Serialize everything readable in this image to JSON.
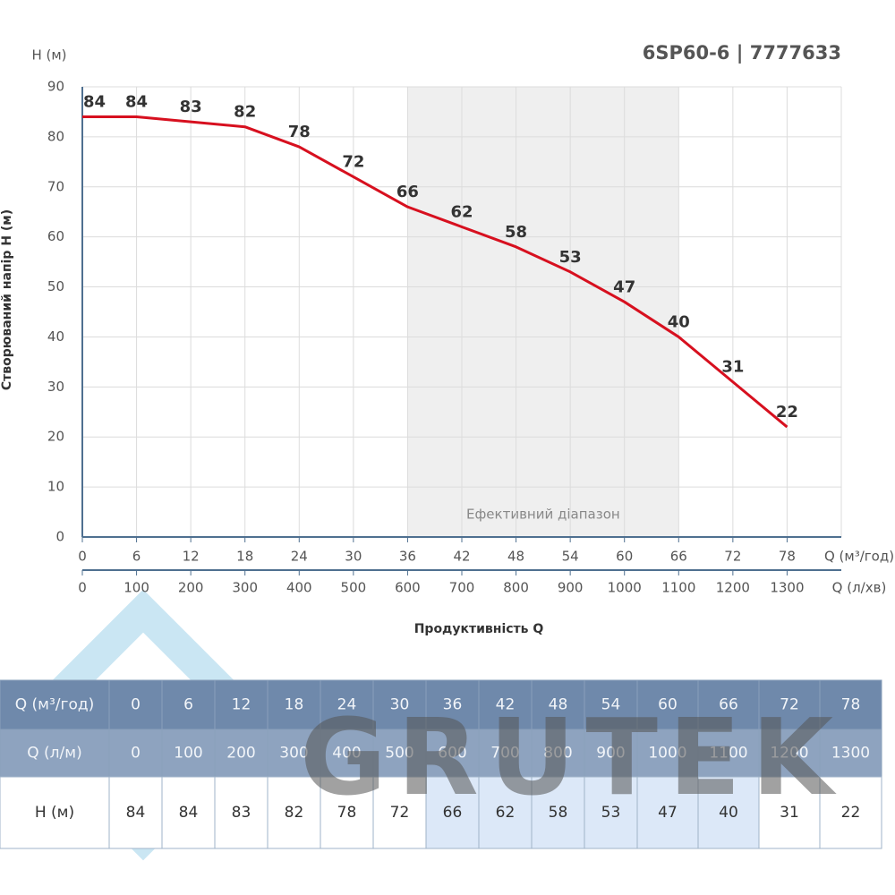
{
  "chart_data": {
    "type": "line",
    "title": "6SP60-6 | 7777633",
    "y_unit_label": "H (м)",
    "ylabel": "Створюваний напір H (м)",
    "xlabel": "Продуктивність Q",
    "x_axis_label": "Q (м³/год)",
    "x2_axis_label": "Q (л/хв)",
    "x": [
      0,
      6,
      12,
      18,
      24,
      30,
      36,
      42,
      48,
      54,
      60,
      66,
      72,
      78
    ],
    "xlim": [
      0,
      84
    ],
    "xticks": [
      0,
      6,
      12,
      18,
      24,
      30,
      36,
      42,
      48,
      54,
      60,
      66,
      72,
      78
    ],
    "x2lim": [
      0,
      1400
    ],
    "x2ticks": [
      0,
      100,
      200,
      300,
      400,
      500,
      600,
      700,
      800,
      900,
      1000,
      1100,
      1200,
      1300
    ],
    "ylim": [
      0,
      90
    ],
    "yticks": [
      0,
      10,
      20,
      30,
      40,
      50,
      60,
      70,
      80,
      90
    ],
    "grid": true,
    "highlight": {
      "x": [
        36,
        66
      ],
      "label": "Ефективний діапазон"
    },
    "series": [
      {
        "name": "H",
        "color": "#d7101f",
        "values": [
          84,
          84,
          83,
          82,
          78,
          72,
          66,
          62,
          58,
          53,
          47,
          40,
          31,
          22
        ]
      }
    ]
  },
  "table": {
    "row_labels": [
      "Q (м³/год)",
      "Q (л/м)",
      "H (м)"
    ]
  },
  "watermark": "GRUTEK"
}
